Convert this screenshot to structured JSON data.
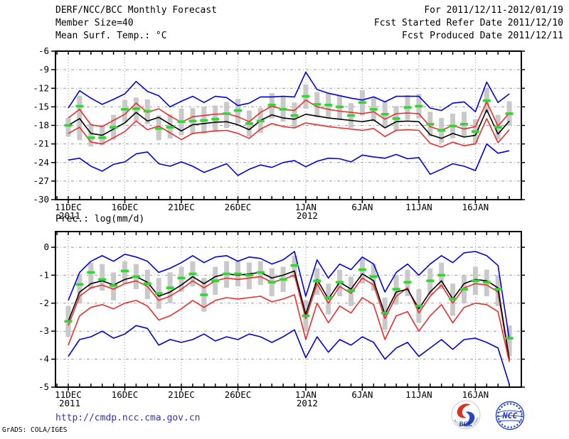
{
  "header": {
    "title": "DERF/NCC/BCC Monthly Forecast",
    "member_size": "Member Size=40",
    "for_period": "For 2011/12/11-2012/01/19",
    "fcst_started": "Fcst Started Refer Date 2011/12/10",
    "fcst_produced": "Fcst Produced Date 2011/12/11"
  },
  "footer": {
    "url": "http://cmdp.ncc.cma.gov.cn",
    "grads_credit": "GrADS: COLA/IGES",
    "logos": [
      {
        "label": "BCC",
        "caption": "BEIJING CLIMATE CENTER"
      },
      {
        "label": "NCC"
      }
    ]
  },
  "colors": {
    "envelope_blue": "#0000e0",
    "spread_red": "#ee2c2c",
    "mean_black": "#000000",
    "obs_green": "#33d433",
    "bar_gray": "#c9c9c9",
    "grid_gray": "#9a9a9a",
    "frame_black": "#000000",
    "url_blue": "#3434b2"
  },
  "chart_data": [
    {
      "type": "line",
      "title": "Mean Surf. Temp.: °C",
      "ylim": [
        -30,
        -6
      ],
      "yticks": [
        -6,
        -9,
        -12,
        -15,
        -18,
        -21,
        -24,
        -27,
        -30
      ],
      "grid_color": "#9a9a9a",
      "xticks": [
        {
          "day": 0,
          "label": "11DEC",
          "sub": "2011"
        },
        {
          "day": 5,
          "label": "16DEC"
        },
        {
          "day": 10,
          "label": "21DEC"
        },
        {
          "day": 15,
          "label": "26DEC"
        },
        {
          "day": 21,
          "label": "1JAN",
          "sub": "2012"
        },
        {
          "day": 26,
          "label": "6JAN"
        },
        {
          "day": 31,
          "label": "11JAN"
        },
        {
          "day": 36,
          "label": "16JAN"
        }
      ],
      "series": [
        {
          "name": "ensemble-max",
          "color": "#0000e0",
          "values": [
            -15.2,
            -12.4,
            -13.6,
            -14.6,
            -13.8,
            -12.9,
            -10.9,
            -12.5,
            -13.2,
            -15.0,
            -14.1,
            -13.3,
            -14.3,
            -13.3,
            -13.5,
            -14.8,
            -14.4,
            -13.4,
            -13.4,
            -13.3,
            -13.4,
            -9.4,
            -12.2,
            -12.8,
            -13.2,
            -13.6,
            -13.9,
            -13.4,
            -14.2,
            -13.3,
            -13.3,
            -13.3,
            -15.2,
            -15.6,
            -14.4,
            -14.2,
            -15.8,
            -11.0,
            -14.3,
            -12.9
          ]
        },
        {
          "name": "mean-plus-spread",
          "color": "#ee2c2c",
          "values": [
            -16.8,
            -15.4,
            -17.9,
            -18.2,
            -17.2,
            -16.2,
            -14.4,
            -15.9,
            -15.3,
            -16.5,
            -17.5,
            -16.6,
            -16.4,
            -16.2,
            -16.1,
            -16.6,
            -17.4,
            -15.9,
            -14.9,
            -15.4,
            -15.6,
            -13.9,
            -15.0,
            -15.4,
            -15.7,
            -15.9,
            -16.1,
            -15.8,
            -17.0,
            -16.1,
            -16.0,
            -16.1,
            -18.2,
            -18.8,
            -18.0,
            -18.6,
            -18.2,
            -14.2,
            -18.1,
            -16.0
          ]
        },
        {
          "name": "ensemble-mean",
          "color": "#000000",
          "values": [
            -18.0,
            -16.9,
            -19.3,
            -19.6,
            -18.6,
            -17.6,
            -15.9,
            -17.3,
            -16.7,
            -17.8,
            -18.9,
            -17.9,
            -17.7,
            -17.5,
            -17.4,
            -17.9,
            -18.7,
            -17.2,
            -16.3,
            -16.8,
            -17.0,
            -16.2,
            -16.5,
            -16.8,
            -17.0,
            -17.2,
            -17.4,
            -17.1,
            -18.4,
            -17.4,
            -17.3,
            -17.4,
            -19.5,
            -20.1,
            -19.3,
            -19.9,
            -19.6,
            -15.5,
            -19.4,
            -17.3
          ]
        },
        {
          "name": "mean-minus-spread",
          "color": "#ee2c2c",
          "values": [
            -19.3,
            -18.3,
            -20.7,
            -21.0,
            -20.0,
            -19.0,
            -17.3,
            -18.7,
            -18.1,
            -19.2,
            -20.3,
            -19.3,
            -19.1,
            -18.9,
            -18.8,
            -19.3,
            -20.1,
            -18.6,
            -17.7,
            -18.2,
            -18.4,
            -17.6,
            -17.9,
            -18.2,
            -18.4,
            -18.6,
            -18.8,
            -18.5,
            -19.8,
            -18.8,
            -18.7,
            -18.8,
            -20.9,
            -21.5,
            -20.7,
            -21.3,
            -21.0,
            -16.9,
            -20.8,
            -18.7
          ]
        },
        {
          "name": "ensemble-min",
          "color": "#0000e0",
          "values": [
            -23.6,
            -23.3,
            -24.6,
            -25.4,
            -24.3,
            -23.9,
            -22.6,
            -22.3,
            -24.2,
            -24.6,
            -23.9,
            -24.6,
            -25.6,
            -24.9,
            -24.2,
            -26.1,
            -25.1,
            -24.4,
            -24.8,
            -24.0,
            -23.7,
            -24.7,
            -23.8,
            -23.3,
            -23.4,
            -23.9,
            -22.8,
            -23.1,
            -23.3,
            -22.7,
            -23.4,
            -23.2,
            -25.9,
            -25.1,
            -24.2,
            -24.6,
            -25.3,
            -21.0,
            -22.5,
            -22.1
          ]
        }
      ],
      "obs_dashes": {
        "name": "reference-dash",
        "color": "#33d433",
        "values": [
          -18.0,
          -14.9,
          -20.0,
          -20.0,
          -18.3,
          -15.4,
          -15.3,
          -15.7,
          -18.5,
          -18.3,
          -17.4,
          -17.3,
          -17.2,
          -17.0,
          -16.1,
          -15.6,
          -17.7,
          -17.3,
          -14.7,
          -15.4,
          -16.4,
          -13.3,
          -14.6,
          -14.7,
          -15.0,
          -16.4,
          -14.3,
          -15.4,
          -16.2,
          -16.9,
          -15.1,
          -14.9,
          -17.8,
          -18.8,
          -18.1,
          -17.8,
          -19.0,
          -14.0,
          -18.3,
          -16.1
        ]
      },
      "spread_bars": {
        "name": "climate-spread-bar",
        "color": "#c9c9c9",
        "ranges": [
          [
            -16.8,
            -19.8
          ],
          [
            -13.2,
            -20.4
          ],
          [
            -17.8,
            -21.4
          ],
          [
            -17.9,
            -21.2
          ],
          [
            -16.3,
            -20.3
          ],
          [
            -13.9,
            -17.5
          ],
          [
            -13.5,
            -17.3
          ],
          [
            -13.8,
            -17.8
          ],
          [
            -16.4,
            -20.4
          ],
          [
            -16.2,
            -20.1
          ],
          [
            -15.3,
            -19.6
          ],
          [
            -15.2,
            -19.4
          ],
          [
            -15.0,
            -19.3
          ],
          [
            -14.8,
            -19.0
          ],
          [
            -14.2,
            -18.4
          ],
          [
            -13.7,
            -17.7
          ],
          [
            -15.6,
            -19.8
          ],
          [
            -15.2,
            -19.2
          ],
          [
            -12.8,
            -16.9
          ],
          [
            -13.4,
            -17.4
          ],
          [
            -14.3,
            -18.4
          ],
          [
            -11.4,
            -15.3
          ],
          [
            -12.6,
            -16.7
          ],
          [
            -12.8,
            -16.8
          ],
          [
            -13.1,
            -17.1
          ],
          [
            -14.4,
            -18.4
          ],
          [
            -12.3,
            -16.4
          ],
          [
            -13.4,
            -17.4
          ],
          [
            -14.2,
            -18.2
          ],
          [
            -14.9,
            -18.9
          ],
          [
            -13.1,
            -17.1
          ],
          [
            -12.9,
            -16.9
          ],
          [
            -15.8,
            -19.8
          ],
          [
            -16.8,
            -20.8
          ],
          [
            -16.1,
            -20.1
          ],
          [
            -15.8,
            -19.8
          ],
          [
            -17.0,
            -21.0
          ],
          [
            -12.0,
            -16.0
          ],
          [
            -16.3,
            -20.3
          ],
          [
            -14.1,
            -18.1
          ]
        ]
      }
    },
    {
      "type": "line",
      "title": "Prec.: log(mm/d)",
      "ylim": [
        -5,
        0.56
      ],
      "yticks": [
        0,
        -1,
        -2,
        -3,
        -4,
        -5
      ],
      "grid_color": "#9a9a9a",
      "xticks": [
        {
          "day": 0,
          "label": "11DEC",
          "sub": "2011"
        },
        {
          "day": 5,
          "label": "16DEC"
        },
        {
          "day": 10,
          "label": "21DEC"
        },
        {
          "day": 15,
          "label": "26DEC"
        },
        {
          "day": 21,
          "label": "1JAN",
          "sub": "2012"
        },
        {
          "day": 26,
          "label": "6JAN"
        },
        {
          "day": 31,
          "label": "11JAN"
        },
        {
          "day": 36,
          "label": "16JAN"
        }
      ],
      "series": [
        {
          "name": "ensemble-max",
          "color": "#0000e0",
          "values": [
            -1.9,
            -0.9,
            -0.5,
            -0.3,
            -0.5,
            -0.25,
            -0.35,
            -0.5,
            -0.9,
            -0.75,
            -0.55,
            -0.3,
            -0.55,
            -0.35,
            -0.3,
            -0.5,
            -0.35,
            -0.4,
            -0.6,
            -0.45,
            -0.15,
            -1.75,
            -0.45,
            -1.1,
            -0.6,
            -0.8,
            -0.35,
            -0.6,
            -1.6,
            -0.9,
            -0.6,
            -1.0,
            -0.6,
            -0.3,
            -0.55,
            -0.2,
            -0.15,
            -0.3,
            -0.65,
            -3.3
          ]
        },
        {
          "name": "mean-plus-spread",
          "color": "#ee2c2c",
          "values": [
            -2.8,
            -1.75,
            -1.45,
            -1.35,
            -1.5,
            -1.3,
            -1.2,
            -1.4,
            -1.9,
            -1.75,
            -1.5,
            -1.2,
            -1.45,
            -1.2,
            -1.1,
            -1.15,
            -1.1,
            -1.05,
            -1.25,
            -1.15,
            -1.0,
            -2.55,
            -1.3,
            -2.0,
            -1.4,
            -1.65,
            -1.1,
            -1.35,
            -2.55,
            -1.75,
            -1.45,
            -2.35,
            -1.75,
            -1.35,
            -2.0,
            -1.45,
            -1.3,
            -1.35,
            -1.6,
            -4.05
          ]
        },
        {
          "name": "ensemble-mean",
          "color": "#000000",
          "values": [
            -2.65,
            -1.6,
            -1.3,
            -1.2,
            -1.35,
            -1.15,
            -1.05,
            -1.25,
            -1.75,
            -1.6,
            -1.35,
            -1.05,
            -1.3,
            -1.05,
            -0.95,
            -1.0,
            -0.95,
            -0.9,
            -1.1,
            -1.0,
            -0.85,
            -2.4,
            -1.15,
            -1.85,
            -1.25,
            -1.5,
            -0.95,
            -1.2,
            -2.4,
            -1.6,
            -1.5,
            -2.2,
            -1.6,
            -1.2,
            -1.85,
            -1.3,
            -1.15,
            -1.2,
            -1.45,
            -4.0
          ]
        },
        {
          "name": "mean-minus-spread",
          "color": "#ee2c2c",
          "values": [
            -3.5,
            -2.45,
            -2.15,
            -2.05,
            -2.2,
            -2.0,
            -1.9,
            -2.1,
            -2.6,
            -2.45,
            -2.2,
            -1.9,
            -2.15,
            -1.9,
            -1.8,
            -1.85,
            -1.8,
            -1.75,
            -1.95,
            -1.85,
            -1.7,
            -3.3,
            -2.0,
            -2.7,
            -2.1,
            -2.35,
            -1.8,
            -2.05,
            -3.3,
            -2.45,
            -2.3,
            -3.0,
            -2.45,
            -2.05,
            -2.7,
            -2.15,
            -2.0,
            -2.05,
            -2.3,
            -4.1
          ]
        },
        {
          "name": "ensemble-min",
          "color": "#0000e0",
          "values": [
            -3.9,
            -3.3,
            -3.2,
            -3.0,
            -3.25,
            -3.1,
            -2.8,
            -2.9,
            -3.5,
            -3.3,
            -3.4,
            -3.3,
            -3.1,
            -3.35,
            -3.2,
            -3.3,
            -3.1,
            -3.2,
            -3.4,
            -3.2,
            -2.95,
            -3.95,
            -3.2,
            -3.75,
            -3.3,
            -3.5,
            -3.2,
            -3.4,
            -4.0,
            -3.6,
            -3.4,
            -3.9,
            -3.6,
            -3.3,
            -3.65,
            -3.3,
            -3.25,
            -3.4,
            -3.6,
            -4.9
          ]
        }
      ],
      "obs_dashes": {
        "name": "reference-dash",
        "color": "#33d433",
        "values": [
          -2.65,
          -1.33,
          -0.9,
          -1.15,
          -1.37,
          -0.85,
          -1.05,
          -1.3,
          -1.65,
          -1.45,
          -1.1,
          -0.95,
          -1.7,
          -1.2,
          -0.95,
          -0.95,
          -1.0,
          -0.9,
          -1.25,
          -1.15,
          -0.65,
          -2.45,
          -1.2,
          -1.8,
          -1.25,
          -1.55,
          -0.8,
          -1.05,
          -2.35,
          -1.5,
          -1.25,
          -2.1,
          -1.2,
          -1.0,
          -1.85,
          -1.5,
          -1.2,
          -1.25,
          -1.5,
          -3.25
        ]
      },
      "spread_bars": {
        "name": "climate-spread-bar",
        "color": "#c9c9c9",
        "ranges": [
          [
            -2.1,
            -3.2
          ],
          [
            -0.95,
            -2.0
          ],
          [
            -0.55,
            -1.5
          ],
          [
            -0.6,
            -1.55
          ],
          [
            -0.9,
            -1.9
          ],
          [
            -0.5,
            -1.3
          ],
          [
            -0.6,
            -1.5
          ],
          [
            -0.8,
            -1.85
          ],
          [
            -1.1,
            -2.2
          ],
          [
            -0.9,
            -2.0
          ],
          [
            -0.7,
            -1.6
          ],
          [
            -0.5,
            -1.4
          ],
          [
            -1.1,
            -2.3
          ],
          [
            -0.7,
            -1.7
          ],
          [
            -0.5,
            -1.45
          ],
          [
            -0.5,
            -1.4
          ],
          [
            -0.55,
            -1.5
          ],
          [
            -0.5,
            -1.35
          ],
          [
            -0.75,
            -1.75
          ],
          [
            -0.7,
            -1.6
          ],
          [
            -0.3,
            -1.1
          ],
          [
            -1.9,
            -3.0
          ],
          [
            -0.75,
            -1.7
          ],
          [
            -1.3,
            -2.4
          ],
          [
            -0.8,
            -1.75
          ],
          [
            -1.05,
            -2.1
          ],
          [
            -0.4,
            -1.3
          ],
          [
            -0.6,
            -1.55
          ],
          [
            -1.8,
            -2.95
          ],
          [
            -1.0,
            -2.05
          ],
          [
            -0.8,
            -1.75
          ],
          [
            -1.5,
            -2.7
          ],
          [
            -0.75,
            -1.7
          ],
          [
            -0.55,
            -1.5
          ],
          [
            -1.3,
            -2.45
          ],
          [
            -1.0,
            -2.0
          ],
          [
            -0.7,
            -1.7
          ],
          [
            -0.8,
            -1.75
          ],
          [
            -1.0,
            -2.1
          ],
          [
            -2.8,
            -3.9
          ]
        ]
      }
    }
  ]
}
